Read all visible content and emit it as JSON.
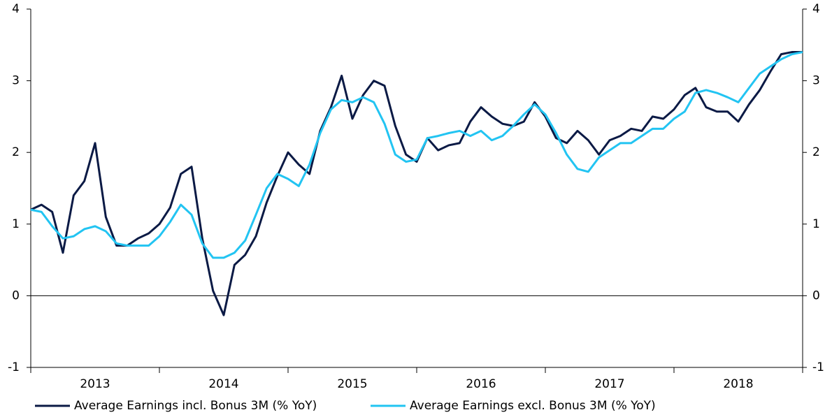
{
  "chart_data": {
    "type": "line",
    "categories": [
      null,
      null,
      null,
      null,
      null,
      null,
      "2013",
      null,
      null,
      null,
      null,
      null,
      null,
      null,
      null,
      null,
      null,
      null,
      "2014",
      null,
      null,
      null,
      null,
      null,
      null,
      null,
      null,
      null,
      null,
      null,
      "2015",
      null,
      null,
      null,
      null,
      null,
      null,
      null,
      null,
      null,
      null,
      null,
      "2016",
      null,
      null,
      null,
      null,
      null,
      null,
      null,
      null,
      null,
      null,
      null,
      "2017",
      null,
      null,
      null,
      null,
      null,
      null,
      null,
      null,
      null,
      null,
      null,
      "2018",
      null,
      null,
      null,
      null,
      null,
      null
    ],
    "series": [
      {
        "name": "Average Earnings incl. Bonus 3M (% YoY)",
        "color": "#0b1a45",
        "values": [
          1.2,
          1.27,
          1.17,
          0.6,
          1.4,
          1.6,
          2.13,
          1.1,
          0.7,
          0.7,
          0.8,
          0.87,
          1.0,
          1.23,
          1.7,
          1.8,
          0.8,
          0.07,
          -0.27,
          0.43,
          0.57,
          0.83,
          1.3,
          1.67,
          2.0,
          1.83,
          1.7,
          2.3,
          2.63,
          3.07,
          2.47,
          2.8,
          3.0,
          2.93,
          2.37,
          1.97,
          1.87,
          2.2,
          2.03,
          2.1,
          2.13,
          2.43,
          2.63,
          2.5,
          2.4,
          2.37,
          2.43,
          2.7,
          2.5,
          2.2,
          2.13,
          2.3,
          2.17,
          1.97,
          2.17,
          2.23,
          2.33,
          2.3,
          2.5,
          2.47,
          2.6,
          2.8,
          2.9,
          2.63,
          2.57,
          2.57,
          2.43,
          2.67,
          2.87,
          3.13,
          3.37,
          3.4,
          3.4
        ]
      },
      {
        "name": "Average Earnings excl. Bonus 3M (% YoY)",
        "color": "#22c4f2",
        "values": [
          1.2,
          1.17,
          0.97,
          0.8,
          0.83,
          0.93,
          0.97,
          0.9,
          0.73,
          0.7,
          0.7,
          0.7,
          0.83,
          1.03,
          1.27,
          1.13,
          0.73,
          0.53,
          0.53,
          0.6,
          0.77,
          1.13,
          1.5,
          1.7,
          1.63,
          1.53,
          1.83,
          2.27,
          2.6,
          2.73,
          2.7,
          2.77,
          2.7,
          2.4,
          1.97,
          1.87,
          1.9,
          2.2,
          2.23,
          2.27,
          2.3,
          2.23,
          2.3,
          2.17,
          2.23,
          2.37,
          2.53,
          2.67,
          2.53,
          2.27,
          1.97,
          1.77,
          1.73,
          1.93,
          2.03,
          2.13,
          2.13,
          2.23,
          2.33,
          2.33,
          2.47,
          2.57,
          2.83,
          2.87,
          2.83,
          2.77,
          2.7,
          2.9,
          3.1,
          3.2,
          3.3,
          3.37,
          3.4
        ]
      }
    ],
    "ylim": [
      -1,
      4
    ],
    "yticks": [
      -1,
      0,
      1,
      2,
      3,
      4
    ],
    "y2lim": [
      -1,
      4
    ],
    "y2ticks": [
      -1,
      0,
      1,
      2,
      3,
      4
    ],
    "legend": "bottom"
  }
}
